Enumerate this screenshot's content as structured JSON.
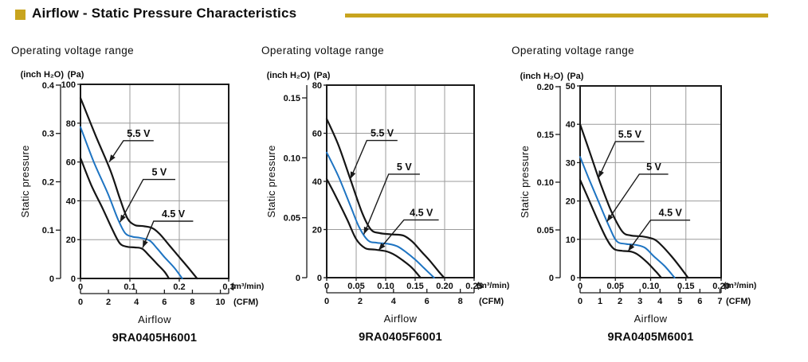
{
  "header": {
    "title": "Airflow - Static Pressure Characteristics",
    "accent_color": "#C8A41E"
  },
  "styles": {
    "curve_black": "#151515",
    "curve_blue": "#1E74C2",
    "grid": "#9B9B9B",
    "frame": "#1A1A1A",
    "text": "#0D0D0D"
  },
  "chart_data": [
    {
      "type": "line",
      "title": "Operating voltage range",
      "model": "9RA0405H6001",
      "xlabel": "Airflow",
      "ylabel": "Static pressure",
      "x_unit_primary": "(m³/min)",
      "x_unit_secondary": "(CFM)",
      "y_unit_left": "(inch H₂O)",
      "y_unit_right": "(Pa)",
      "x_max": 0.3,
      "y_max": 100,
      "grid": true,
      "legend_position": "inline-annotations",
      "pa_ticks": [
        {
          "v": 0,
          "label": "0"
        },
        {
          "v": 20,
          "label": "20"
        },
        {
          "v": 40,
          "label": "40"
        },
        {
          "v": 60,
          "label": "60"
        },
        {
          "v": 80,
          "label": "80"
        },
        {
          "v": 100,
          "label": "100"
        }
      ],
      "inch_ticks": [
        {
          "pa": 0,
          "label": "0"
        },
        {
          "pa": 24.9,
          "label": "0.1"
        },
        {
          "pa": 49.8,
          "label": "0.2"
        },
        {
          "pa": 74.7,
          "label": "0.3"
        },
        {
          "pa": 99.6,
          "label": "0.4"
        }
      ],
      "m3_ticks": [
        {
          "v": 0,
          "label": "0"
        },
        {
          "v": 0.1,
          "label": "0.1"
        },
        {
          "v": 0.2,
          "label": "0.2"
        },
        {
          "v": 0.3,
          "label": "0.3"
        }
      ],
      "cfm_ticks": [
        {
          "v": 0,
          "label": "0"
        },
        {
          "v": 2,
          "label": "2"
        },
        {
          "v": 4,
          "label": "4"
        },
        {
          "v": 6,
          "label": "6"
        },
        {
          "v": 8,
          "label": "8"
        },
        {
          "v": 10,
          "label": "10"
        }
      ],
      "cfm_to_m3_per_min": 0.0283168,
      "series": [
        {
          "name": "5.5 V",
          "color": "black",
          "points": [
            [
              0,
              93
            ],
            [
              0.03,
              74
            ],
            [
              0.06,
              56
            ],
            [
              0.08,
              41
            ],
            [
              0.095,
              31
            ],
            [
              0.11,
              27.5
            ],
            [
              0.125,
              27
            ],
            [
              0.145,
              26
            ],
            [
              0.16,
              23
            ],
            [
              0.18,
              17
            ],
            [
              0.2,
              11
            ],
            [
              0.22,
              5
            ],
            [
              0.236,
              0
            ]
          ]
        },
        {
          "name": "5 V",
          "color": "blue",
          "points": [
            [
              0,
              78
            ],
            [
              0.027,
              60
            ],
            [
              0.055,
              44
            ],
            [
              0.075,
              31
            ],
            [
              0.09,
              23.5
            ],
            [
              0.105,
              21.5
            ],
            [
              0.12,
              21
            ],
            [
              0.14,
              19.5
            ],
            [
              0.155,
              15.5
            ],
            [
              0.17,
              11
            ],
            [
              0.19,
              5.5
            ],
            [
              0.206,
              0
            ]
          ]
        },
        {
          "name": "4.5 V",
          "color": "black",
          "points": [
            [
              0,
              62
            ],
            [
              0.022,
              48
            ],
            [
              0.045,
              36
            ],
            [
              0.065,
              25
            ],
            [
              0.08,
              18
            ],
            [
              0.095,
              16.3
            ],
            [
              0.11,
              16
            ],
            [
              0.125,
              15.3
            ],
            [
              0.14,
              11.5
            ],
            [
              0.155,
              7.5
            ],
            [
              0.17,
              3.5
            ],
            [
              0.179,
              0
            ]
          ]
        }
      ],
      "annotations": [
        {
          "text": "5.5 V",
          "underline": [
            [
              0.087,
              71
            ],
            [
              0.148,
              71
            ]
          ],
          "arrow_tip": [
            0.058,
            60
          ]
        },
        {
          "text": "5 V",
          "underline": [
            [
              0.127,
              51
            ],
            [
              0.192,
              51
            ]
          ],
          "arrow_tip": [
            0.08,
            29
          ]
        },
        {
          "text": "4.5 V",
          "underline": [
            [
              0.148,
              29.5
            ],
            [
              0.228,
              29.5
            ]
          ],
          "arrow_tip": [
            0.126,
            15.8
          ]
        }
      ]
    },
    {
      "type": "line",
      "title": "Operating voltage range",
      "model": "9RA0405F6001",
      "xlabel": "Airflow",
      "ylabel": "Static pressure",
      "x_unit_primary": "(m³/min)",
      "x_unit_secondary": "(CFM)",
      "y_unit_left": "(inch H₂O)",
      "y_unit_right": "(Pa)",
      "x_max": 0.25,
      "y_max": 80,
      "grid": true,
      "legend_position": "inline-annotations",
      "pa_ticks": [
        {
          "v": 0,
          "label": "0"
        },
        {
          "v": 20,
          "label": "20"
        },
        {
          "v": 40,
          "label": "40"
        },
        {
          "v": 60,
          "label": "60"
        },
        {
          "v": 80,
          "label": "80"
        }
      ],
      "inch_ticks": [
        {
          "pa": 0,
          "label": "0"
        },
        {
          "pa": 24.9,
          "label": "0.05"
        },
        {
          "pa": 49.8,
          "label": "0.10"
        },
        {
          "pa": 74.7,
          "label": "0.15"
        }
      ],
      "m3_ticks": [
        {
          "v": 0,
          "label": "0"
        },
        {
          "v": 0.05,
          "label": "0.05"
        },
        {
          "v": 0.1,
          "label": "0.10"
        },
        {
          "v": 0.15,
          "label": "0.15"
        },
        {
          "v": 0.2,
          "label": "0.20"
        },
        {
          "v": 0.25,
          "label": "0.25"
        }
      ],
      "cfm_ticks": [
        {
          "v": 0,
          "label": "0"
        },
        {
          "v": 2,
          "label": "2"
        },
        {
          "v": 4,
          "label": "4"
        },
        {
          "v": 6,
          "label": "6"
        },
        {
          "v": 8,
          "label": "8"
        }
      ],
      "cfm_to_m3_per_min": 0.0283168,
      "series": [
        {
          "name": "5.5 V",
          "color": "black",
          "points": [
            [
              0,
              66
            ],
            [
              0.02,
              55
            ],
            [
              0.04,
              41
            ],
            [
              0.06,
              27
            ],
            [
              0.075,
              20
            ],
            [
              0.09,
              18.5
            ],
            [
              0.11,
              18
            ],
            [
              0.13,
              17.5
            ],
            [
              0.145,
              15
            ],
            [
              0.16,
              11
            ],
            [
              0.175,
              7
            ],
            [
              0.19,
              2.5
            ],
            [
              0.199,
              0
            ]
          ]
        },
        {
          "name": "5 V",
          "color": "blue",
          "points": [
            [
              0,
              52
            ],
            [
              0.02,
              42
            ],
            [
              0.04,
              30
            ],
            [
              0.055,
              21
            ],
            [
              0.07,
              15.5
            ],
            [
              0.085,
              14.5
            ],
            [
              0.105,
              14
            ],
            [
              0.12,
              13
            ],
            [
              0.135,
              10.5
            ],
            [
              0.15,
              7.5
            ],
            [
              0.165,
              4
            ],
            [
              0.182,
              0
            ]
          ]
        },
        {
          "name": "4.5 V",
          "color": "black",
          "points": [
            [
              0,
              41
            ],
            [
              0.015,
              34
            ],
            [
              0.035,
              24
            ],
            [
              0.05,
              16
            ],
            [
              0.065,
              12.3
            ],
            [
              0.08,
              11.7
            ],
            [
              0.1,
              11
            ],
            [
              0.115,
              9.5
            ],
            [
              0.13,
              7
            ],
            [
              0.145,
              4
            ],
            [
              0.159,
              0
            ]
          ]
        }
      ],
      "annotations": [
        {
          "text": "5.5 V",
          "underline": [
            [
              0.068,
              57
            ],
            [
              0.12,
              57
            ]
          ],
          "arrow_tip": [
            0.04,
            41
          ]
        },
        {
          "text": "5 V",
          "underline": [
            [
              0.105,
              43
            ],
            [
              0.158,
              43
            ]
          ],
          "arrow_tip": [
            0.063,
            18
          ]
        },
        {
          "text": "4.5 V",
          "underline": [
            [
              0.131,
              24
            ],
            [
              0.19,
              24
            ]
          ],
          "arrow_tip": [
            0.088,
            11.4
          ]
        }
      ]
    },
    {
      "type": "line",
      "title": "Operating voltage range",
      "model": "9RA0405M6001",
      "xlabel": "Airflow",
      "ylabel": "Static pressure",
      "x_unit_primary": "(m³/min)",
      "x_unit_secondary": "(CFM)",
      "y_unit_left": "(inch H₂O)",
      "y_unit_right": "(Pa)",
      "x_max": 0.2,
      "y_max": 50,
      "grid": true,
      "legend_position": "inline-annotations",
      "pa_ticks": [
        {
          "v": 0,
          "label": "0"
        },
        {
          "v": 10,
          "label": "10"
        },
        {
          "v": 20,
          "label": "20"
        },
        {
          "v": 30,
          "label": "30"
        },
        {
          "v": 40,
          "label": "40"
        },
        {
          "v": 50,
          "label": "50"
        }
      ],
      "inch_ticks": [
        {
          "pa": 0,
          "label": "0"
        },
        {
          "pa": 12.45,
          "label": "0.05"
        },
        {
          "pa": 24.9,
          "label": "0.10"
        },
        {
          "pa": 37.35,
          "label": "0.15"
        },
        {
          "pa": 49.8,
          "label": "0.20"
        }
      ],
      "m3_ticks": [
        {
          "v": 0,
          "label": "0"
        },
        {
          "v": 0.05,
          "label": "0.05"
        },
        {
          "v": 0.1,
          "label": "0.10"
        },
        {
          "v": 0.15,
          "label": "0.15"
        },
        {
          "v": 0.2,
          "label": "0.20"
        }
      ],
      "cfm_ticks": [
        {
          "v": 0,
          "label": "0"
        },
        {
          "v": 1,
          "label": "1"
        },
        {
          "v": 2,
          "label": "2"
        },
        {
          "v": 3,
          "label": "3"
        },
        {
          "v": 4,
          "label": "4"
        },
        {
          "v": 5,
          "label": "5"
        },
        {
          "v": 6,
          "label": "6"
        },
        {
          "v": 7,
          "label": "7"
        }
      ],
      "cfm_to_m3_per_min": 0.0283168,
      "series": [
        {
          "name": "5.5 V",
          "color": "black",
          "points": [
            [
              0,
              40
            ],
            [
              0.015,
              32
            ],
            [
              0.03,
              24
            ],
            [
              0.045,
              17
            ],
            [
              0.06,
              12
            ],
            [
              0.072,
              11
            ],
            [
              0.09,
              10.7
            ],
            [
              0.105,
              10
            ],
            [
              0.115,
              8.5
            ],
            [
              0.13,
              5.5
            ],
            [
              0.145,
              2
            ],
            [
              0.153,
              0
            ]
          ]
        },
        {
          "name": "5 V",
          "color": "blue",
          "points": [
            [
              0,
              31.5
            ],
            [
              0.012,
              26
            ],
            [
              0.028,
              19
            ],
            [
              0.042,
              13
            ],
            [
              0.052,
              9.5
            ],
            [
              0.065,
              8.8
            ],
            [
              0.08,
              8.5
            ],
            [
              0.092,
              7.8
            ],
            [
              0.105,
              5.5
            ],
            [
              0.12,
              3
            ],
            [
              0.134,
              0
            ]
          ]
        },
        {
          "name": "4.5 V",
          "color": "black",
          "points": [
            [
              0,
              25.5
            ],
            [
              0.012,
              20.5
            ],
            [
              0.025,
              15
            ],
            [
              0.038,
              10
            ],
            [
              0.048,
              7.5
            ],
            [
              0.06,
              7
            ],
            [
              0.072,
              6.8
            ],
            [
              0.082,
              6
            ],
            [
              0.095,
              4
            ],
            [
              0.108,
              1.5
            ],
            [
              0.115,
              0
            ]
          ]
        }
      ],
      "annotations": [
        {
          "text": "5.5 V",
          "underline": [
            [
              0.05,
              35.5
            ],
            [
              0.091,
              35.5
            ]
          ],
          "arrow_tip": [
            0.026,
            26
          ]
        },
        {
          "text": "5 V",
          "underline": [
            [
              0.084,
              27
            ],
            [
              0.125,
              27
            ]
          ],
          "arrow_tip": [
            0.038,
            14.6
          ]
        },
        {
          "text": "4.5 V",
          "underline": [
            [
              0.1,
              15
            ],
            [
              0.156,
              15
            ]
          ],
          "arrow_tip": [
            0.068,
            6.9
          ]
        }
      ]
    }
  ]
}
